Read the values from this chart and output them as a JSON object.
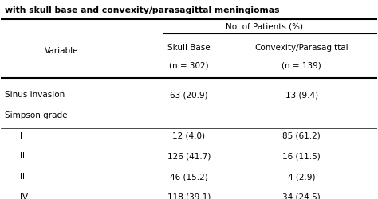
{
  "title": "with skull base and convexity/parasagittal meningiomas",
  "header_main": "No. of Patients (%)",
  "col1_header_line1": "Variable",
  "col2_header_line1": "Skull Base",
  "col2_header_line2": "(n = 302)",
  "col3_header_line1": "Convexity/Parasagittal",
  "col3_header_line2": "(n = 139)",
  "rows": [
    {
      "variable": "Sinus invasion",
      "skull_base": "63 (20.9)",
      "convexity": "13 (9.4)",
      "indent": 0,
      "divider_above": true,
      "divider_below": true
    },
    {
      "variable": "Simpson grade",
      "skull_base": "",
      "convexity": "",
      "indent": 0,
      "divider_above": false,
      "divider_below": false
    },
    {
      "variable": "I",
      "skull_base": "12 (4.0)",
      "convexity": "85 (61.2)",
      "indent": 1,
      "divider_above": true,
      "divider_below": false
    },
    {
      "variable": "II",
      "skull_base": "126 (41.7)",
      "convexity": "16 (11.5)",
      "indent": 1,
      "divider_above": false,
      "divider_below": false
    },
    {
      "variable": "III",
      "skull_base": "46 (15.2)",
      "convexity": "4 (2.9)",
      "indent": 1,
      "divider_above": false,
      "divider_below": false
    },
    {
      "variable": "IV",
      "skull_base": "118 (39.1)",
      "convexity": "34 (24.5)",
      "indent": 1,
      "divider_above": false,
      "divider_below": false
    }
  ],
  "bg_color": "#f0f0f0",
  "text_color": "#000000",
  "font_size": 7.5,
  "title_font_size": 7.8
}
